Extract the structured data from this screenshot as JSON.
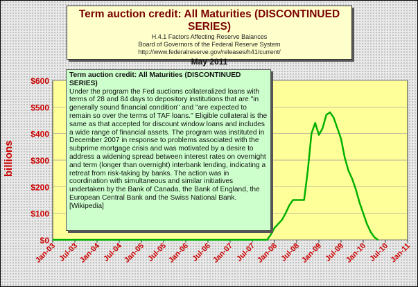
{
  "chart_data": {
    "type": "area",
    "title": "Term auction credit: All Maturities (DISCONTINUED SERIES)",
    "subtitle_lines": [
      "H.4.1 Factors Affecting Reserve Balances",
      "Board of Governors of the Federal Reserve System",
      "http://www.federalreserve.gov/releases/h41/current/"
    ],
    "date_label": "May 2011",
    "ylabel": "billions",
    "ylim": [
      0,
      600
    ],
    "y_ticks": [
      0,
      100,
      200,
      300,
      400,
      500,
      600
    ],
    "y_tick_labels": [
      "$0",
      "$100",
      "$200",
      "$300",
      "$400",
      "$500",
      "$600"
    ],
    "x_range": [
      "2003-01",
      "2011-01"
    ],
    "x_tick_labels": [
      "Jan-03",
      "Jul-03",
      "Jan-04",
      "Jul-04",
      "Jan-05",
      "Jul-05",
      "Jan-06",
      "Jul-06",
      "Jan-07",
      "Jul-07",
      "Jan-08",
      "Jul-08",
      "Jan-09",
      "Jul-09",
      "Jan-10",
      "Jul-10",
      "Jan-11"
    ],
    "grid": true,
    "series": [
      {
        "x": [
          "2003-01",
          "2007-11",
          "2007-12",
          "2008-01",
          "2008-02",
          "2008-03",
          "2008-04",
          "2008-05",
          "2008-06",
          "2008-07",
          "2008-08",
          "2008-09",
          "2008-10",
          "2008-11",
          "2008-12",
          "2009-01",
          "2009-02",
          "2009-03",
          "2009-04",
          "2009-05",
          "2009-06",
          "2009-07",
          "2009-08",
          "2009-09",
          "2009-10",
          "2009-11",
          "2009-12",
          "2010-01",
          "2010-02",
          "2010-03",
          "2010-04",
          "2010-05"
        ],
        "values": [
          0,
          0,
          20,
          45,
          60,
          75,
          100,
          130,
          150,
          150,
          150,
          150,
          260,
          400,
          440,
          395,
          420,
          470,
          480,
          460,
          420,
          380,
          310,
          260,
          230,
          190,
          140,
          100,
          60,
          30,
          10,
          0
        ]
      }
    ],
    "colors": {
      "line": "#00b000",
      "plot_bg": "#ffff99",
      "axis_text": "#cc0000"
    }
  },
  "note": {
    "title": "Term auction credit: All Maturities (DISCONTINUED SERIES)",
    "body": "Under the program the Fed auctions collateralized loans with terms of 28 and 84 days to depository institutions that are \"in generally sound financial condition\" and \"are expected to remain so over the terms of TAF loans.\" Eligible collateral is the same as that accepted for discount window loans and includes a wide range of financial assets.  The program was instituted in December 2007 in response to problems associated with the subprime mortgage crisis and was motivated by a desire to address a widening spread between interest rates on overnight and term (longer than overnight) interbank lending, indicating a retreat from risk-taking by banks.  The action was in coordination with simultaneous and similar initiatives undertaken by the Bank of Canada, the Bank of England,  the European Central Bank and the Swiss National Bank. [Wikipedia]"
  }
}
